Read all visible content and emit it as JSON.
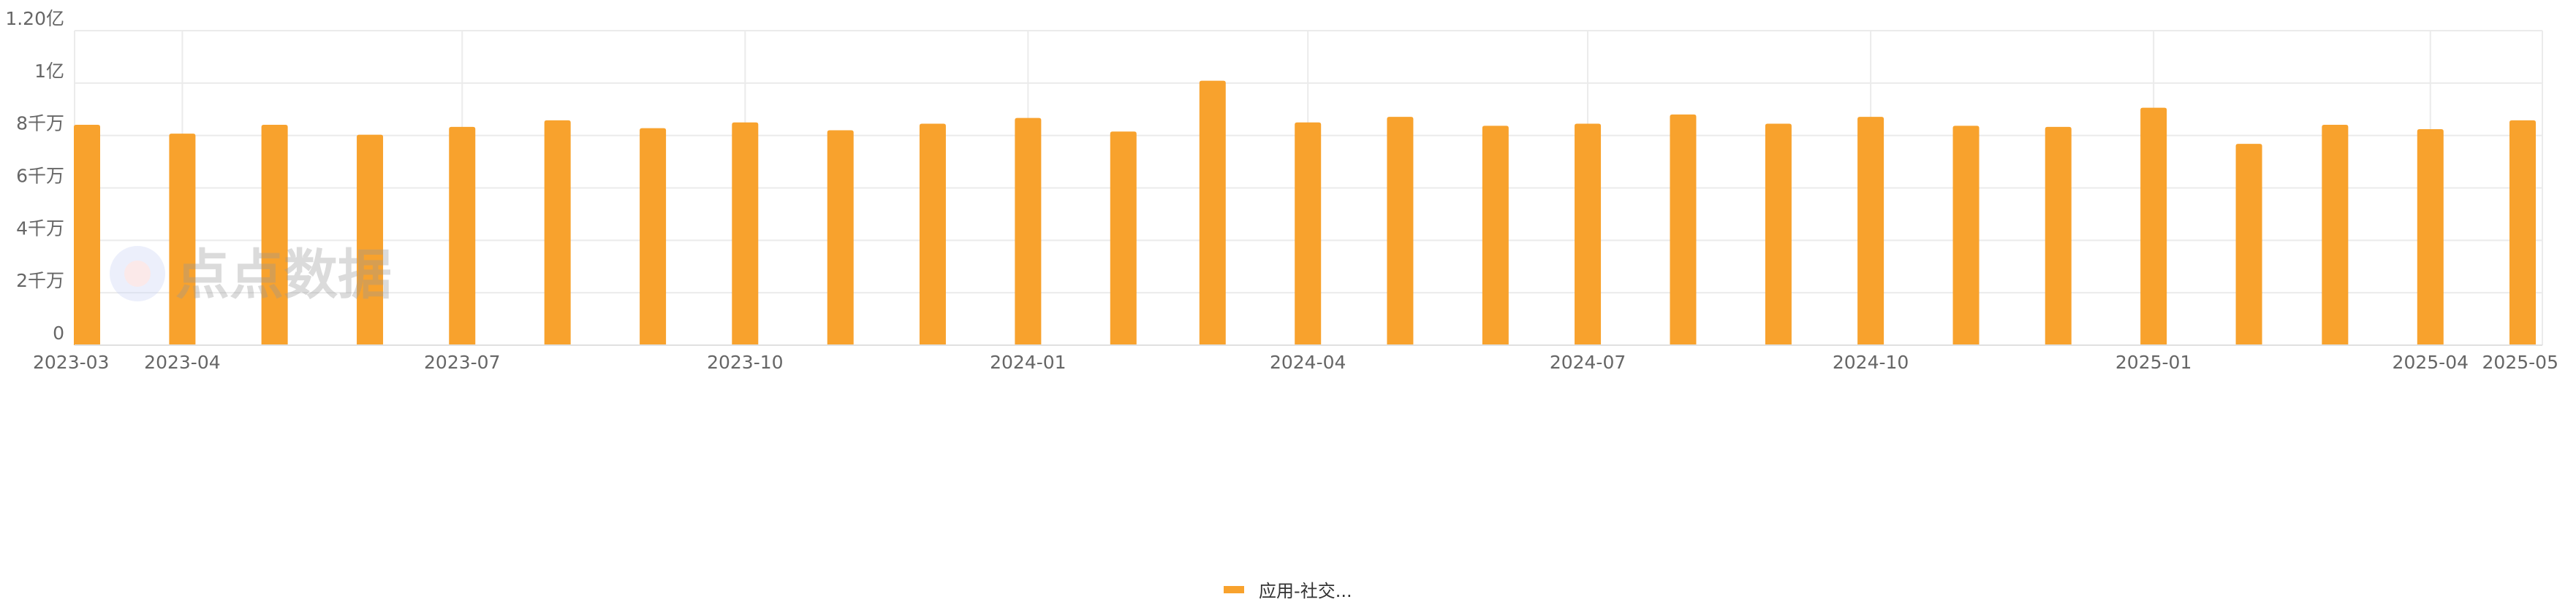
{
  "chart_data": {
    "type": "bar",
    "title": "",
    "xlabel": "",
    "ylabel": "",
    "x_axis_type": "time",
    "categories": [
      "2023-03",
      "2023-04",
      "2023-05",
      "2023-06",
      "2023-07",
      "2023-08",
      "2023-09",
      "2023-10",
      "2023-11",
      "2023-12",
      "2024-01",
      "2024-02",
      "2024-03",
      "2024-04",
      "2024-05",
      "2024-06",
      "2024-07",
      "2024-08",
      "2024-09",
      "2024-10",
      "2024-11",
      "2024-12",
      "2025-01",
      "2025-02",
      "2025-03",
      "2025-04",
      "2025-05"
    ],
    "series": [
      {
        "name": "应用-社交...",
        "color": "#F8A22D",
        "values": [
          84100000,
          80700000,
          84100000,
          80300000,
          83300000,
          85800000,
          82800000,
          85000000,
          82000000,
          84500000,
          86700000,
          81500000,
          100900000,
          85000000,
          87100000,
          83700000,
          84500000,
          88000000,
          84500000,
          87100000,
          83700000,
          83300000,
          90600000,
          76800000,
          84100000,
          82400000,
          85800000
        ]
      }
    ],
    "ylim": [
      0,
      120000000
    ],
    "y_ticks": [
      {
        "value": 0,
        "label": "0"
      },
      {
        "value": 20000000,
        "label": "2千万"
      },
      {
        "value": 40000000,
        "label": "4千万"
      },
      {
        "value": 60000000,
        "label": "6千万"
      },
      {
        "value": 80000000,
        "label": "8千万"
      },
      {
        "value": 100000000,
        "label": "1亿"
      },
      {
        "value": 120000000,
        "label": "1.20亿"
      }
    ],
    "x_tick_labels": [
      "2023-03",
      "2023-04",
      "2023-07",
      "2023-10",
      "2024-01",
      "2024-04",
      "2024-07",
      "2024-10",
      "2025-01",
      "2025-04",
      "2025-05"
    ],
    "grid": true,
    "legend_position": "bottom-center"
  },
  "legend": {
    "label": "应用-社交..."
  },
  "watermark": {
    "text": "点点数据"
  }
}
